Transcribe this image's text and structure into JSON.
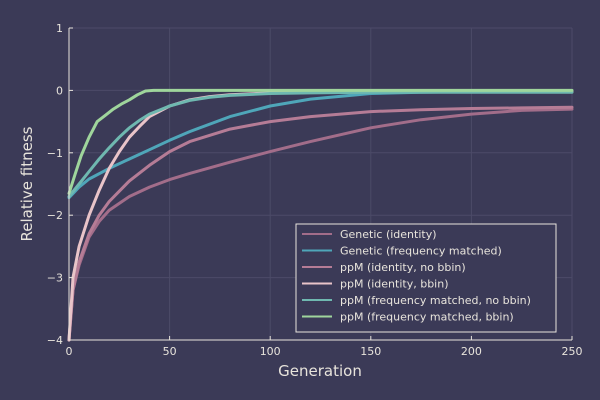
{
  "chart_data": {
    "type": "line",
    "title": "",
    "xlabel": "Generation",
    "ylabel": "Relative fitness",
    "xlim": [
      0,
      250
    ],
    "ylim": [
      -4,
      1
    ],
    "x_ticks": [
      0,
      50,
      100,
      150,
      200,
      250
    ],
    "y_ticks": [
      -4,
      -3,
      -2,
      -1,
      0,
      1
    ],
    "x_tick_labels": [
      "0",
      "50",
      "100",
      "150",
      "200",
      "250"
    ],
    "y_tick_labels": [
      "−4",
      "−3",
      "−2",
      "−1",
      "0",
      "1"
    ],
    "grid": true,
    "legend_position": "bottom-right",
    "background": "#3b3a57",
    "series": [
      {
        "name": "Genetic (identity)",
        "color": "#a26d8a",
        "x": [
          0,
          2,
          5,
          10,
          15,
          20,
          30,
          40,
          50,
          60,
          80,
          100,
          120,
          150,
          175,
          200,
          225,
          250
        ],
        "y": [
          -4.0,
          -3.2,
          -2.8,
          -2.35,
          -2.1,
          -1.92,
          -1.7,
          -1.55,
          -1.43,
          -1.33,
          -1.15,
          -0.98,
          -0.82,
          -0.6,
          -0.47,
          -0.38,
          -0.32,
          -0.3
        ]
      },
      {
        "name": "Genetic (frequency matched)",
        "color": "#4fa6b9",
        "x": [
          0,
          5,
          10,
          20,
          30,
          40,
          50,
          60,
          80,
          100,
          120,
          150,
          175,
          200,
          225,
          250
        ],
        "y": [
          -1.72,
          -1.55,
          -1.42,
          -1.25,
          -1.1,
          -0.95,
          -0.8,
          -0.66,
          -0.42,
          -0.25,
          -0.14,
          -0.05,
          -0.03,
          -0.02,
          -0.02,
          -0.02
        ]
      },
      {
        "name": "ppM (identity, no bbin)",
        "color": "#b57c96",
        "x": [
          0,
          2,
          5,
          10,
          15,
          20,
          30,
          40,
          50,
          60,
          80,
          100,
          120,
          150,
          175,
          200,
          225,
          250
        ],
        "y": [
          -4.0,
          -3.2,
          -2.75,
          -2.3,
          -2.0,
          -1.78,
          -1.45,
          -1.2,
          -0.98,
          -0.82,
          -0.62,
          -0.5,
          -0.42,
          -0.34,
          -0.31,
          -0.29,
          -0.28,
          -0.27
        ]
      },
      {
        "name": "ppM (identity, bbin)",
        "color": "#e9c4c9",
        "x": [
          0,
          2,
          5,
          10,
          15,
          20,
          25,
          30,
          35,
          40,
          50,
          60,
          70,
          80,
          100,
          120,
          150,
          200,
          250
        ],
        "y": [
          -4.0,
          -3.0,
          -2.5,
          -2.0,
          -1.6,
          -1.25,
          -0.98,
          -0.75,
          -0.58,
          -0.42,
          -0.25,
          -0.15,
          -0.1,
          -0.07,
          -0.04,
          -0.03,
          -0.02,
          -0.02,
          -0.02
        ]
      },
      {
        "name": "ppM (frequency matched, no bbin)",
        "color": "#6fb8b0",
        "x": [
          0,
          5,
          10,
          15,
          20,
          25,
          30,
          35,
          40,
          50,
          60,
          70,
          80,
          100,
          120,
          150,
          200,
          250
        ],
        "y": [
          -1.7,
          -1.5,
          -1.3,
          -1.1,
          -0.92,
          -0.75,
          -0.6,
          -0.48,
          -0.38,
          -0.25,
          -0.16,
          -0.11,
          -0.08,
          -0.05,
          -0.04,
          -0.03,
          -0.03,
          -0.03
        ]
      },
      {
        "name": "ppM (frequency matched, bbin)",
        "color": "#9fd59c",
        "x": [
          0,
          3,
          6,
          10,
          14,
          18,
          22,
          26,
          30,
          34,
          38,
          42,
          50,
          60,
          80,
          100,
          150,
          200,
          250
        ],
        "y": [
          -1.65,
          -1.35,
          -1.05,
          -0.75,
          -0.5,
          -0.4,
          -0.3,
          -0.22,
          -0.15,
          -0.07,
          -0.01,
          0.0,
          0.0,
          0.0,
          0.0,
          0.0,
          0.0,
          0.0,
          0.0
        ]
      }
    ]
  }
}
